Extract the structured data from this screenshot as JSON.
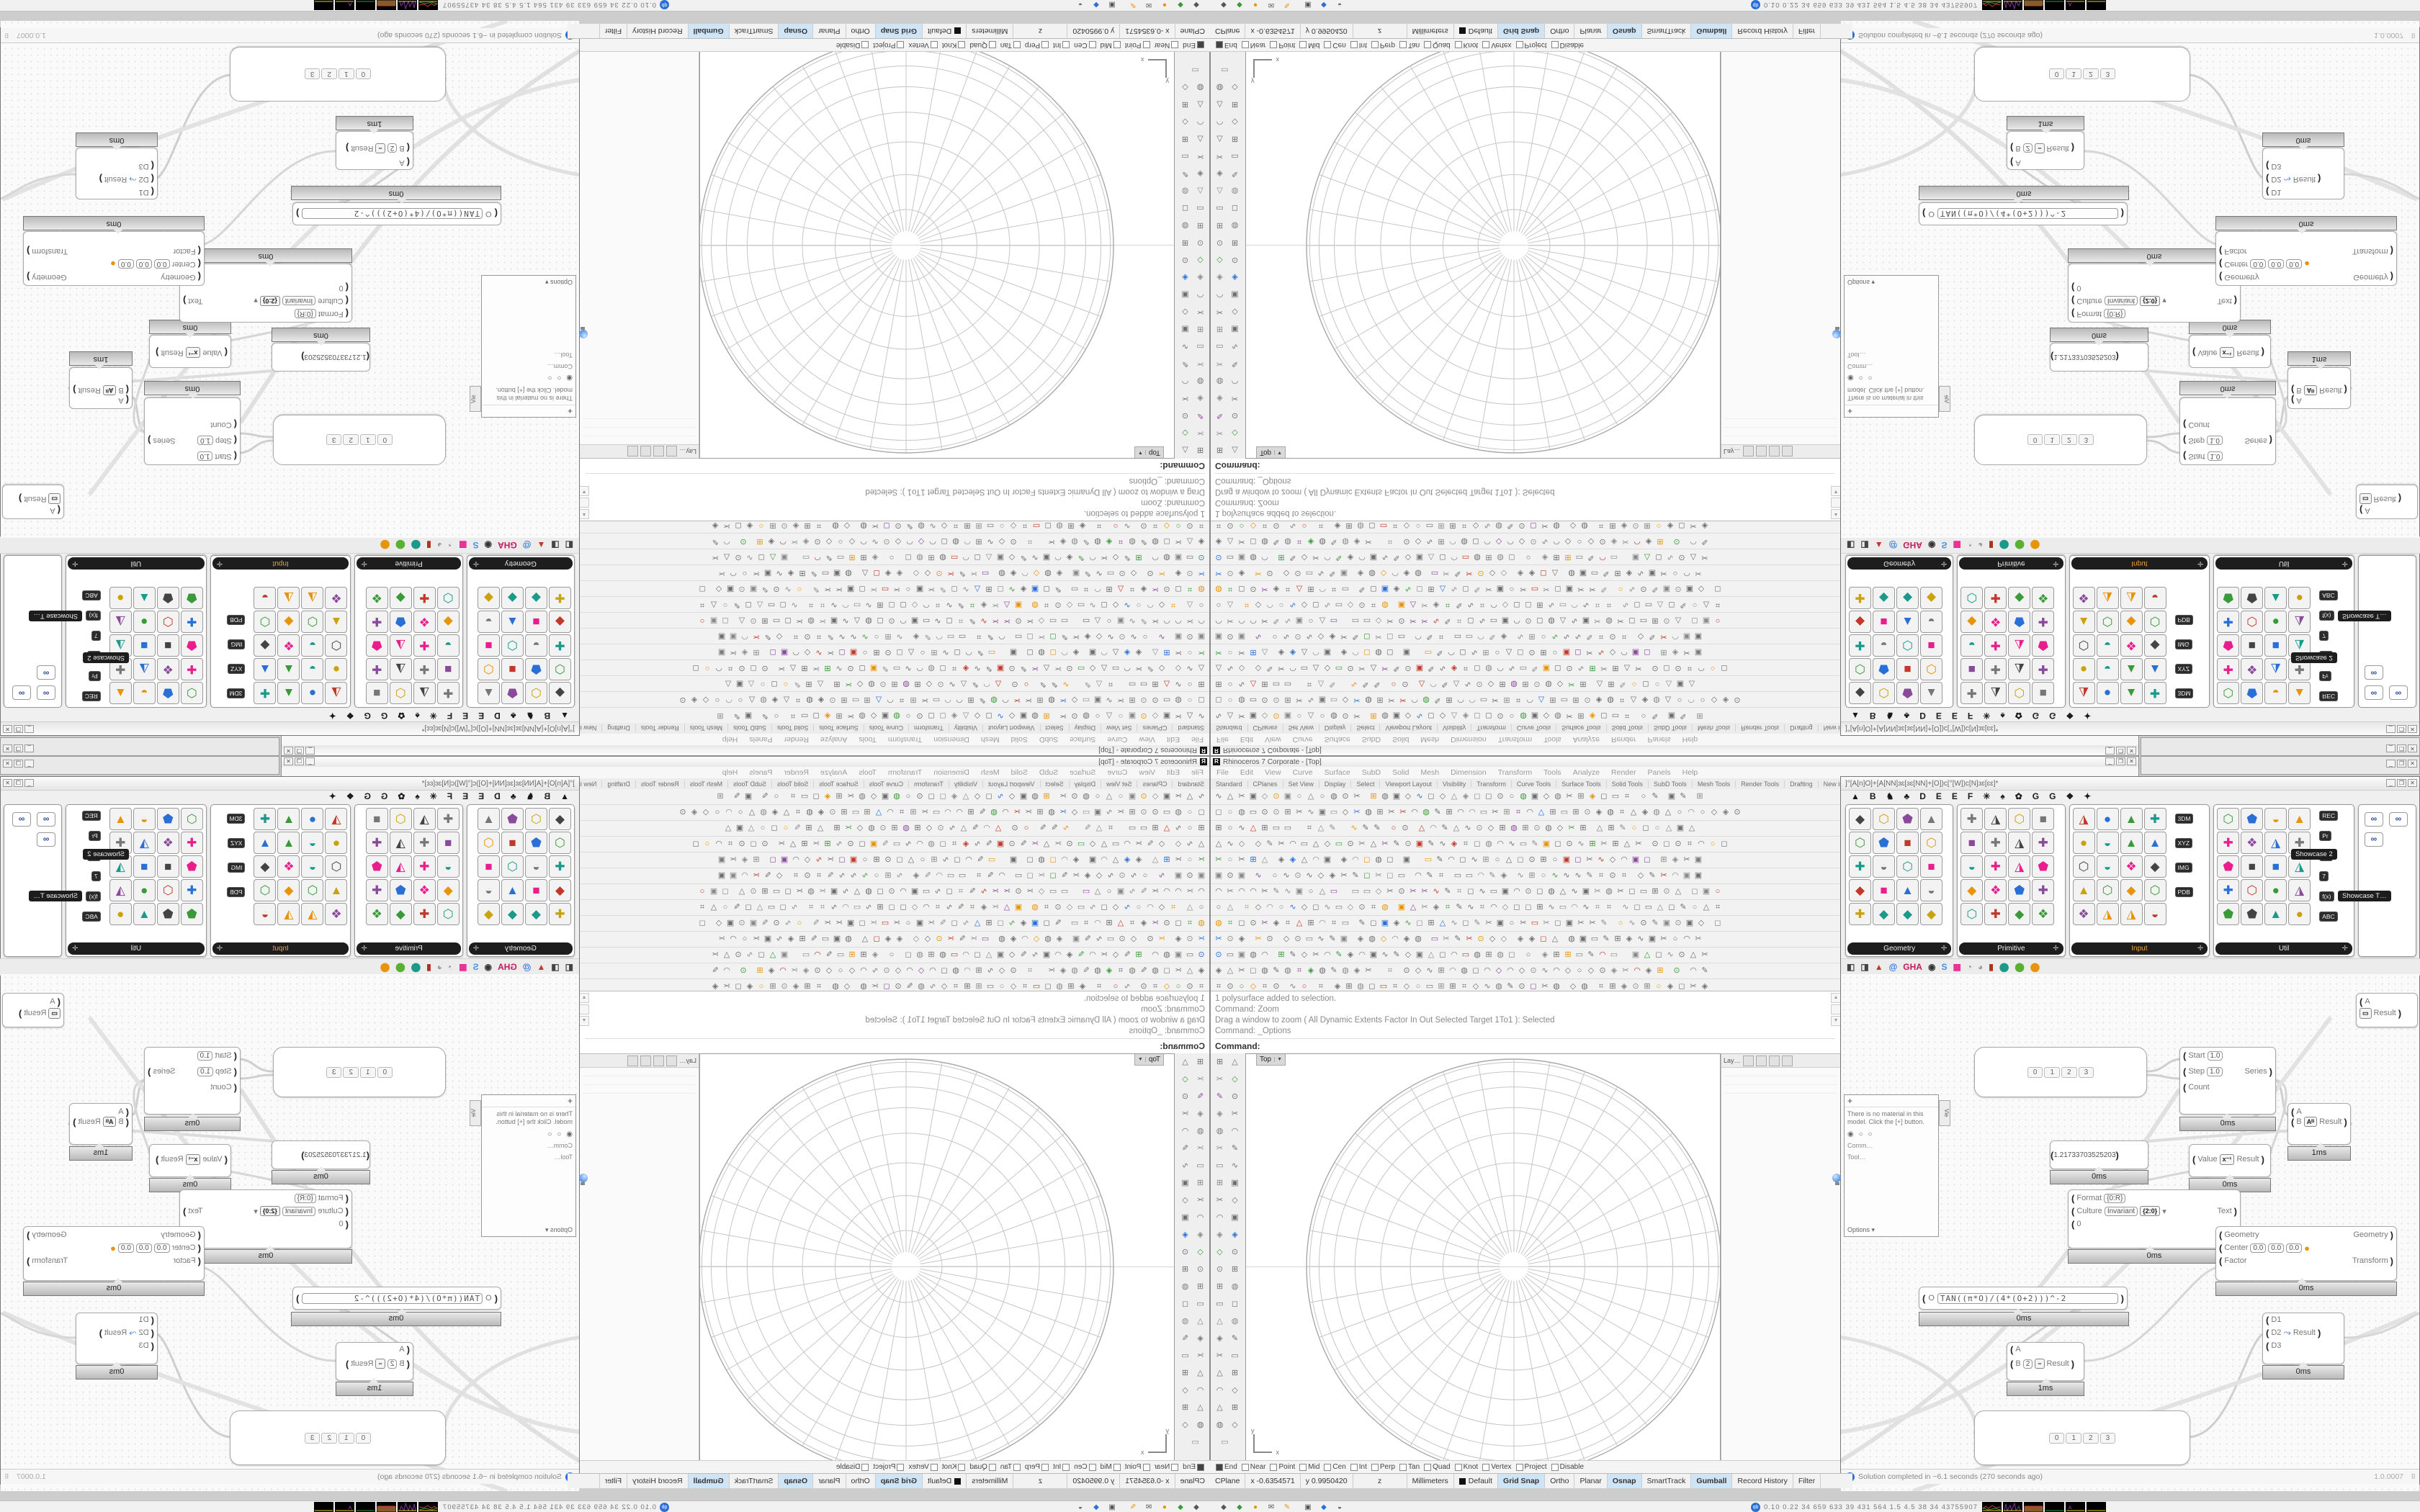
{
  "rhino": {
    "title": "Rhinoceros 7 Corporate - [Top]",
    "logo_letter": "R",
    "window_buttons": [
      "_",
      "❐",
      "✕"
    ],
    "menus": [
      "File",
      "Edit",
      "View",
      "Curve",
      "Surface",
      "SubD",
      "Solid",
      "Mesh",
      "Dimension",
      "Transform",
      "Tools",
      "Analyze",
      "Render",
      "Panels",
      "Help"
    ],
    "toolbar_tabs": [
      "Standard",
      "CPlanes",
      "Set View",
      "Display",
      "Select",
      "Viewport Layout",
      "Visibility",
      "Transform",
      "Curve Tools",
      "Surface Tools",
      "Solid Tools",
      "SubD Tools",
      "Mesh Tools",
      "Render Tools",
      "Drafting",
      "New in V7"
    ],
    "command_history": [
      "1 polysurface added to selection.",
      "Command: Zoom",
      "Drag a window to zoom ( All  Dynamic  Extents  Factor  In  Out  Selected  Target  1To1 ): Selected",
      "Command: _Options"
    ],
    "command_prompt": "Command:",
    "viewport": {
      "tab": "Top",
      "dropdown": "▼",
      "axis_x": "x",
      "axis_y": "y"
    },
    "panel_dock": {
      "tab_label": "Lay…"
    },
    "materials_panel": {
      "add_button": "+",
      "message": "There is no material in this model. Click the [+] button.",
      "radios": "◉ ○ ○",
      "group_a": "Comm…",
      "group_b": "Tool…",
      "options_label": "Options ▾",
      "side_tab": "Vie"
    },
    "osnap_items": [
      "End",
      "Near",
      "Point",
      "Mid",
      "Cen",
      "Int",
      "Perp",
      "Tan",
      "Quad",
      "Knot",
      "Vertex",
      "Project",
      "Disable"
    ],
    "status": {
      "cplane": "CPlane",
      "x": "x -0.6354571",
      "y": "y 0.9950420",
      "z": "z",
      "units": "Millimeters",
      "layer": "Default",
      "toggles": [
        "Grid Snap",
        "Ortho",
        "Planar",
        "Osnap",
        "SmartTrack",
        "Gumball",
        "Record History",
        "Filter"
      ],
      "active_toggles": [
        "Grid Snap",
        "Osnap",
        "Gumball"
      ]
    }
  },
  "grasshopper": {
    "title": "]°[A[n]Ô]+[A[NN]ɜɛ[ɜɛ[NN]+[Ô])c[°[W])c[N]ɜɛ[ɛɛ]*",
    "window_buttons": [
      "_",
      "❐",
      "✕"
    ],
    "tab_glyphs": [
      "▲",
      "B",
      "♞",
      "♣",
      "D",
      "E",
      "E",
      "F",
      "✳",
      "♠",
      "✿",
      "G",
      "G",
      "❖",
      "✦"
    ],
    "groups": [
      {
        "label": "Geometry",
        "accent": false
      },
      {
        "label": "Primitive",
        "accent": false
      },
      {
        "label": "Input",
        "accent": true
      },
      {
        "label": "Util",
        "accent": false
      }
    ],
    "input_chips": [
      "3DM",
      "XYZ",
      "IMG",
      "PDB"
    ],
    "util_chips": [
      "REC",
      "Pr",
      "C:/",
      "7",
      "f(x)",
      "ABC"
    ],
    "showcase_chip_1": "Showcase 2",
    "showcase_chip_2": "Showcase T…",
    "goggle_glyph": "∞",
    "canvas_toolbar_icons": [
      {
        "g": "◧",
        "c": "#444"
      },
      {
        "g": "◨",
        "c": "#444"
      },
      {
        "g": "▲",
        "c": "#c0392b"
      },
      {
        "g": "@",
        "c": "#2a6fd6"
      },
      {
        "g": "GHA",
        "c": "#c2185b"
      },
      {
        "g": "◉",
        "c": "#333"
      },
      {
        "g": "S",
        "c": "#4a90d9"
      },
      {
        "g": "▦",
        "c": "#e91e8c"
      },
      {
        "g": "◔",
        "c": "#8a8a8a"
      },
      {
        "g": "◕",
        "c": "#9a9a9a"
      },
      {
        "g": "▮",
        "c": "#b03020"
      },
      {
        "g": "⬤",
        "c": "#1a9a8a"
      },
      {
        "g": "⬤",
        "c": "#5ab031"
      },
      {
        "g": "⬤",
        "c": "#e8940a"
      }
    ],
    "nodes": {
      "series": {
        "in1": "Start",
        "val1": "1.0",
        "in2": "Step",
        "val2": "1.0",
        "in3": "Count",
        "icon": "012",
        "out": "Series",
        "time": "0ms"
      },
      "power": {
        "in1": "A",
        "in2": "B",
        "icon": "Aᴮ",
        "out": "Result",
        "time": "1ms"
      },
      "reciprocal": {
        "in": "Value",
        "icon": "x⁻¹",
        "out": "Result",
        "time": "0ms"
      },
      "panel_value": "1.21733703525203",
      "panel_time": "0ms",
      "format": {
        "in1": "Format",
        "val1": "{0:R}",
        "in2": "Culture",
        "val2": "Invariant",
        "icon": "{2:0}",
        "out": "Text",
        "in3": "0",
        "time": "0ms",
        "dd": "▾"
      },
      "scale": {
        "in1": "Geometry",
        "in2": "Center",
        "cx": "0.0",
        "cy": "0.0",
        "cz": "0.0",
        "in3": "Factor",
        "out1": "Geometry",
        "out2": "Transform",
        "time": "0ms",
        "axes": "x y z"
      },
      "merge": {
        "in1": "D1",
        "in2": "D2",
        "in3": "D3",
        "icon": "⤳",
        "out": "Result",
        "time": "0ms"
      },
      "expression": {
        "in": "O",
        "formula": "TAN((π*O)/(4*(O+2)))^-2",
        "time": "0ms"
      },
      "subtract": {
        "in1": "A",
        "in2": "B",
        "bval": "2",
        "icon": "−",
        "out": "Result",
        "time": "1ms"
      },
      "top_node": {
        "in": "A",
        "icon": "▭",
        "out": "Result"
      },
      "value_list": [
        "0",
        "1",
        "2",
        "3"
      ]
    },
    "status_message": "Solution completed in ~6.1 seconds (270 seconds ago)",
    "status_icon": "i",
    "version": "1.0.0007",
    "grip": "⠿"
  },
  "taskbar": {
    "monitor_label": "qb",
    "monitor_values": "0.10 0.22  34  659  633  39  431  564  1.5  4.5  38  34  43755907"
  }
}
